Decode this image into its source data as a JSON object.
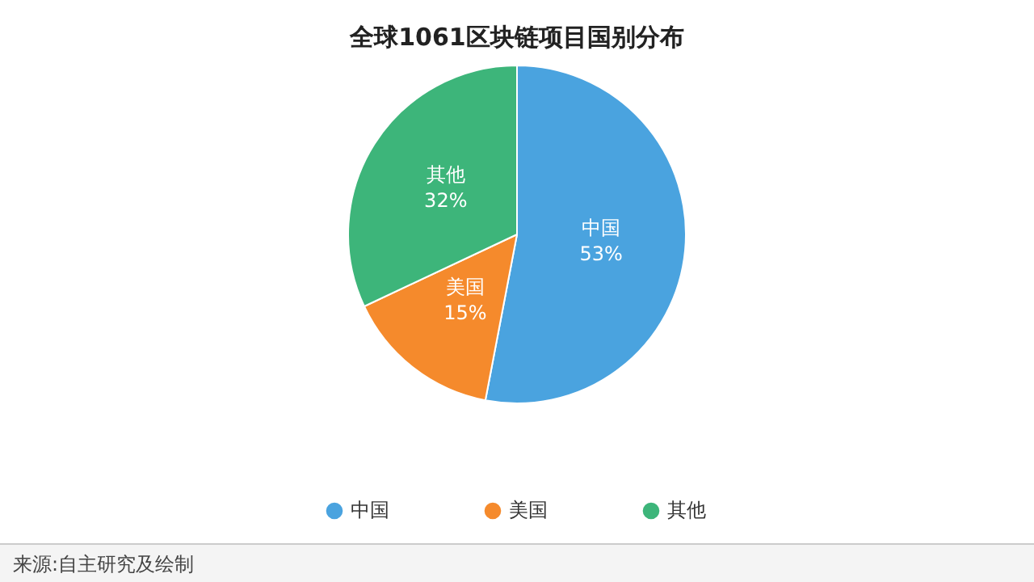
{
  "chart_data": {
    "type": "pie",
    "title": "全球1061区块链项目国别分布",
    "categories": [
      "中国",
      "美国",
      "其他"
    ],
    "values": [
      53,
      15,
      32
    ],
    "value_labels": [
      "53%",
      "15%",
      "32%"
    ],
    "colors": [
      "#4aa3df",
      "#f58a2c",
      "#3db57a"
    ],
    "legend": "bottom",
    "annotations": [
      "来源:自主研究及绘制"
    ]
  }
}
